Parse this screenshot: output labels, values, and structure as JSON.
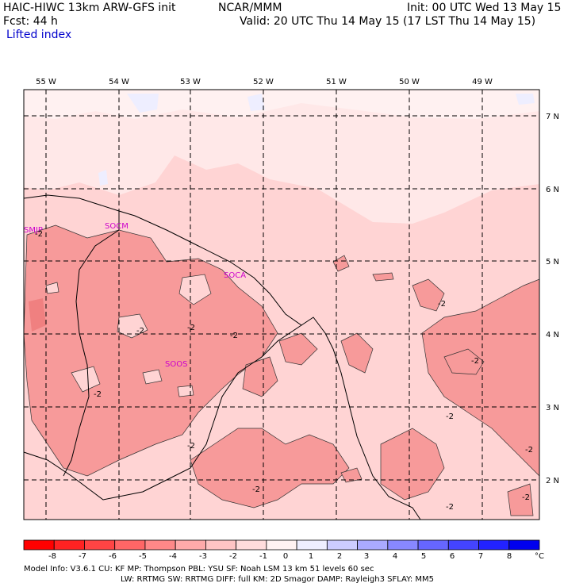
{
  "header": {
    "model_title": "HAIC-HIWC 13km ARW-GFS init",
    "agency": "NCAR/MMM",
    "init": "Init: 00 UTC Wed 13 May 15",
    "fcst": "Fcst:    44 h",
    "valid": "Valid: 20 UTC Thu 14 May 15 (17 LST Thu 14 May 15)",
    "field": "Lifted index"
  },
  "map": {
    "lon_labels": [
      "55 W",
      "54 W",
      "53 W",
      "52 W",
      "51 W",
      "50 W",
      "49 W"
    ],
    "lat_labels": [
      "7 N",
      "6 N",
      "5 N",
      "4 N",
      "3 N",
      "2 N"
    ],
    "stations": [
      "SMJP",
      "SOCM",
      "SOCA",
      "SOOS"
    ],
    "contour_value": "-2"
  },
  "colorbar": {
    "ticks": [
      "-8",
      "-7",
      "-6",
      "-5",
      "-4",
      "-3",
      "-2",
      "-1",
      "0",
      "1",
      "2",
      "3",
      "4",
      "5",
      "6",
      "7",
      "8"
    ],
    "unit": "°C",
    "colors": [
      "#ff0000",
      "#ff2222",
      "#ff4444",
      "#ff6666",
      "#ff8888",
      "#ffaaaa",
      "#ffc4c4",
      "#ffdcdc",
      "#fff2f2",
      "#eeeeff",
      "#ccccff",
      "#aaaaff",
      "#8888ff",
      "#6666ff",
      "#4444ff",
      "#2222ff",
      "#0000ee"
    ]
  },
  "footer": {
    "line1": "Model Info: V3.6.1    CU: KF      MP: Thompson    PBL: YSU      SF: Noah LSM     13 km    51 levels   60 sec",
    "line2": "LW: RRTMG    SW: RRTMG   DIFF: full    KM: 2D Smagor DAMP: Rayleigh3  SFLAY: MM5"
  }
}
